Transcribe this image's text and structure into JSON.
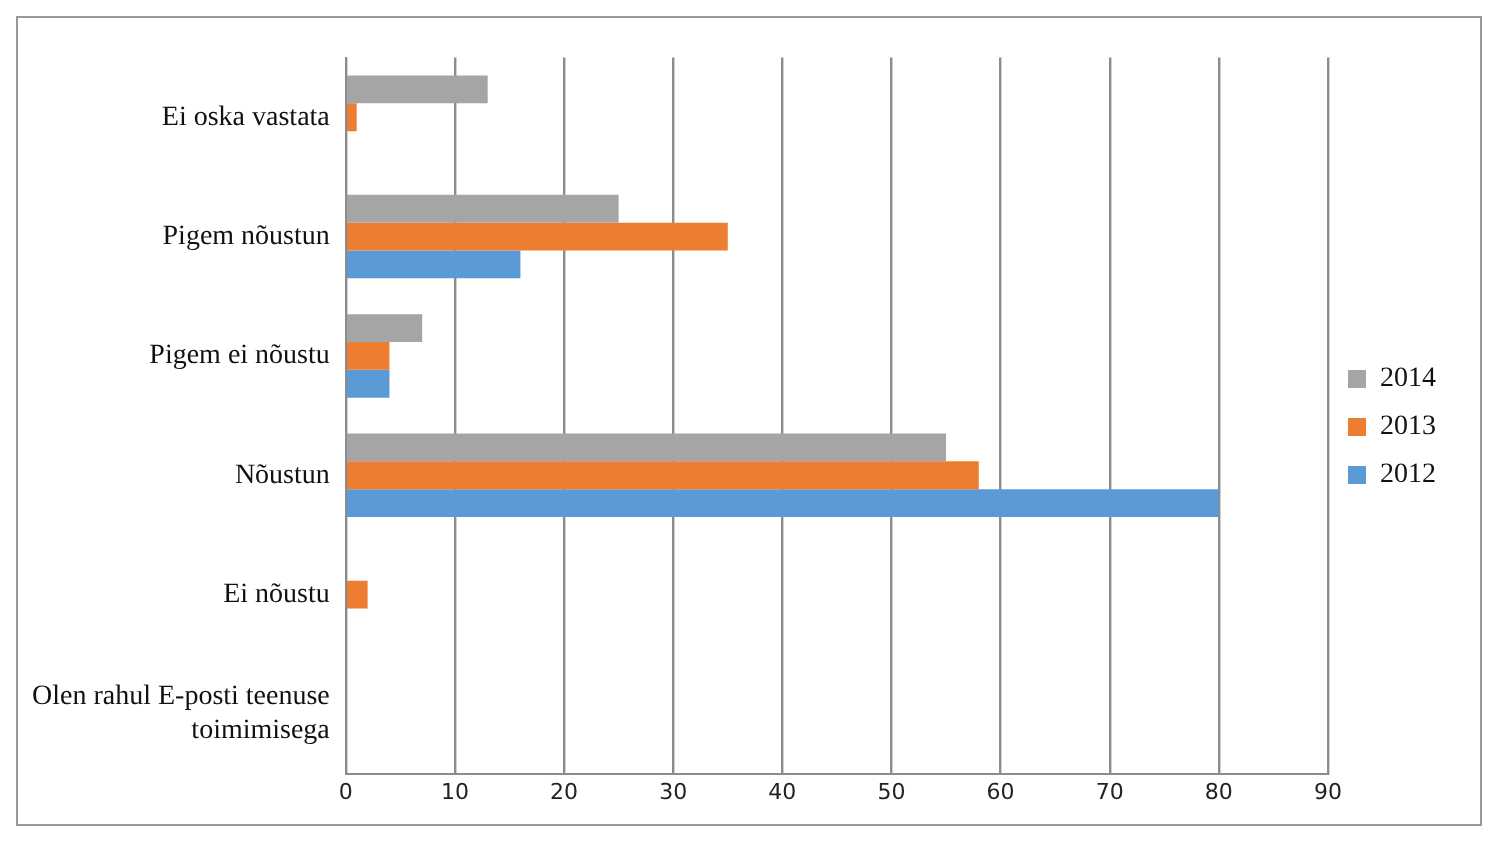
{
  "chart_data": {
    "type": "bar",
    "orientation": "horizontal",
    "categories": [
      "Ei oska vastata",
      "Pigem nõustun",
      "Pigem ei nõustu",
      "Nõustun",
      "Ei nõustu",
      "Olen rahul E-posti teenuse toimimisega"
    ],
    "series": [
      {
        "name": "2014",
        "color": "#a5a5a5",
        "values": [
          13,
          25,
          7,
          55,
          0,
          0
        ]
      },
      {
        "name": "2013",
        "color": "#ed7d31",
        "values": [
          1,
          35,
          4,
          58,
          2,
          0
        ]
      },
      {
        "name": "2012",
        "color": "#5b9bd5",
        "values": [
          0,
          16,
          4,
          80,
          0,
          0
        ]
      }
    ],
    "xlim": [
      0,
      90
    ],
    "xticks": [
      0,
      10,
      20,
      30,
      40,
      50,
      60,
      70,
      80,
      90
    ],
    "grid": "x",
    "legend": "right"
  }
}
